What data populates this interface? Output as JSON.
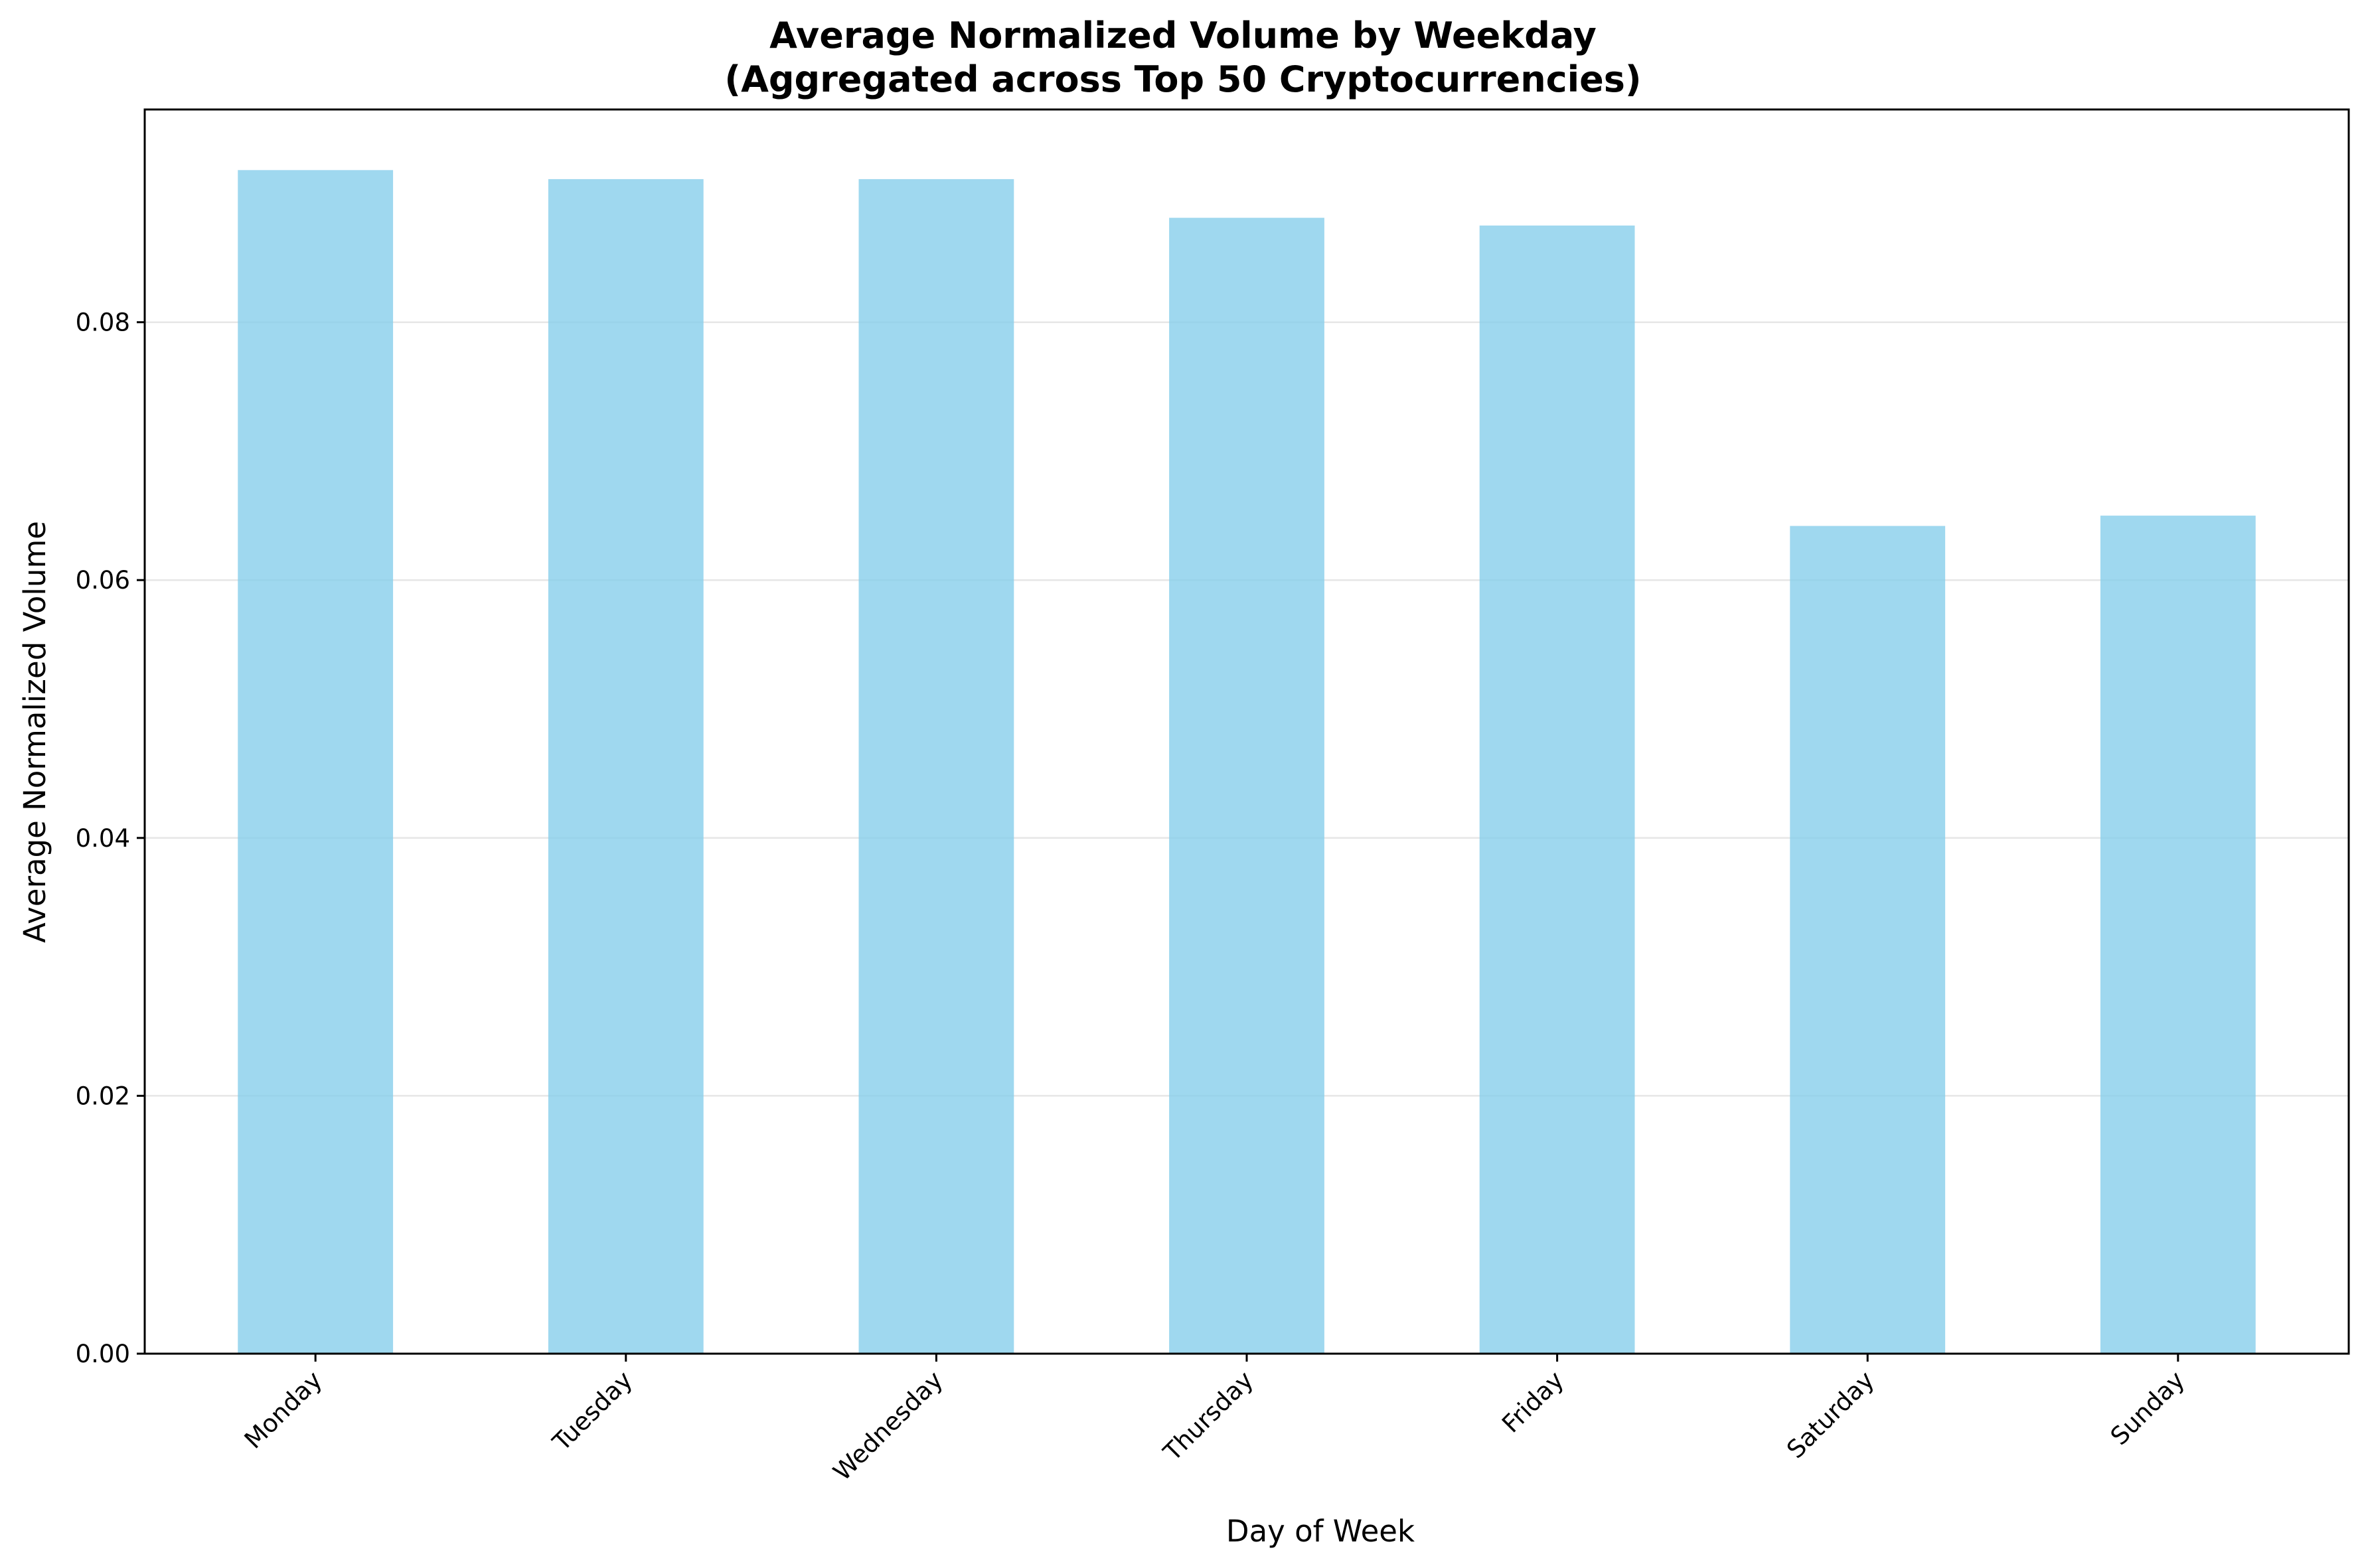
{
  "chart_data": {
    "type": "bar",
    "title": "Average Normalized Volume by Weekday",
    "subtitle": "(Aggregated across Top 50 Cryptocurrencies)",
    "xlabel": "Day of Week",
    "ylabel": "Average Normalized Volume",
    "categories": [
      "Monday",
      "Tuesday",
      "Wednesday",
      "Thursday",
      "Friday",
      "Saturday",
      "Sunday"
    ],
    "values": [
      0.0918,
      0.0911,
      0.0911,
      0.0881,
      0.0875,
      0.0642,
      0.065
    ],
    "ylim": [
      0,
      0.0965
    ],
    "yticks": [
      0.0,
      0.02,
      0.04,
      0.06,
      0.08
    ],
    "ytick_labels": [
      "0.00",
      "0.02",
      "0.04",
      "0.06",
      "0.08"
    ],
    "grid": "horizontal",
    "bar_color": "#87ceeb",
    "bar_opacity": 0.8,
    "grid_color": "#e6e6e6"
  }
}
